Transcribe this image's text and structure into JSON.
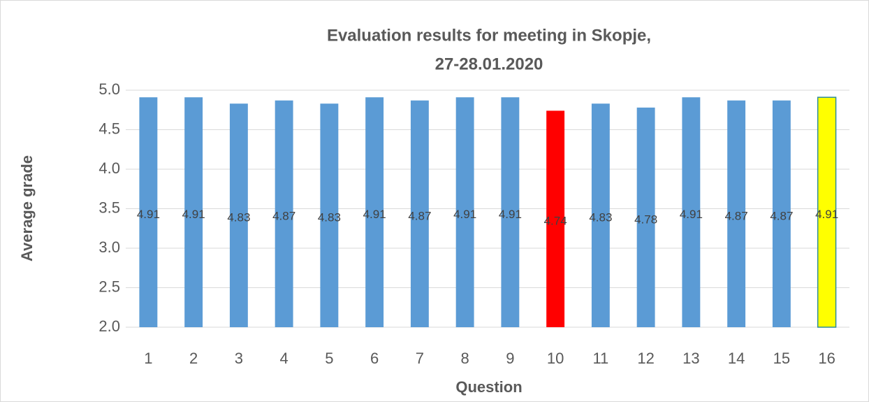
{
  "chart_data": {
    "type": "bar",
    "title": [
      "Evaluation results for meeting in Skopje,",
      "27-28.01.2020"
    ],
    "x_label": "Question",
    "y_label": "Average grade",
    "categories": [
      "1",
      "2",
      "3",
      "4",
      "5",
      "6",
      "7",
      "8",
      "9",
      "10",
      "11",
      "12",
      "13",
      "14",
      "15",
      "16"
    ],
    "values": [
      4.91,
      4.91,
      4.83,
      4.87,
      4.83,
      4.91,
      4.87,
      4.91,
      4.91,
      4.74,
      4.83,
      4.78,
      4.91,
      4.87,
      4.87,
      4.91
    ],
    "colors": [
      "#5b9bd5",
      "#5b9bd5",
      "#5b9bd5",
      "#5b9bd5",
      "#5b9bd5",
      "#5b9bd5",
      "#5b9bd5",
      "#5b9bd5",
      "#5b9bd5",
      "#ff0000",
      "#5b9bd5",
      "#5b9bd5",
      "#5b9bd5",
      "#5b9bd5",
      "#5b9bd5",
      "#ffff00"
    ],
    "ylim": [
      2,
      5
    ],
    "yticks": [
      {
        "value": 2,
        "label": "2.0"
      },
      2.5,
      {
        "value": 3,
        "label": "3.0"
      },
      3.5,
      {
        "value": 4,
        "label": "4.0"
      },
      4.5,
      {
        "value": 5,
        "label": "5.0"
      }
    ],
    "grid": true
  }
}
